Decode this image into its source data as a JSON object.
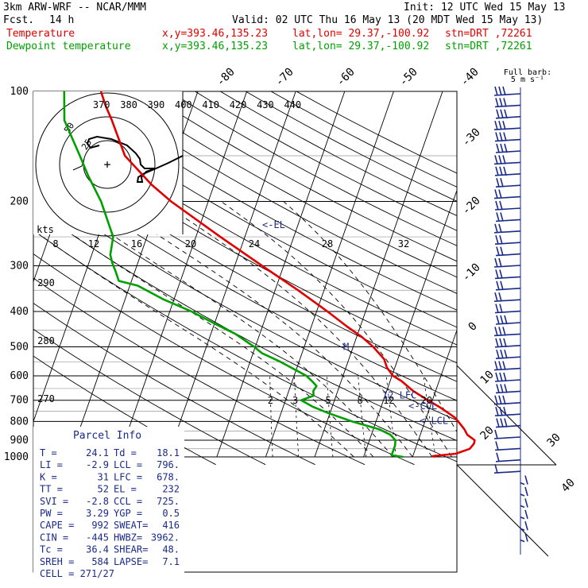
{
  "header": {
    "model": "3km ARW-WRF -- NCAR/MMM",
    "init": "Init: 12 UTC Wed 15 May 13",
    "fcst_label": "Fcst.",
    "fcst_value": "14 h",
    "valid": "Valid: 02 UTC Thu 16 May 13 (20 MDT Wed 15 May 13)",
    "lines": [
      {
        "name": "Temperature",
        "xy": "x,y=393.46,135.23",
        "latlon": "lat,lon= 29.37,-100.92",
        "stn": "stn=DRT ,72261",
        "color": "#e00000"
      },
      {
        "name": "Dewpoint temperature",
        "xy": "x,y=393.46,135.23",
        "latlon": "lat,lon= 29.37,-100.92",
        "stn": "stn=DRT ,72261",
        "color": "#00a000"
      }
    ],
    "barb_key": "Full barb:",
    "barb_key_unit": "5 m s⁻¹"
  },
  "chart_data": {
    "type": "line",
    "diagram": "skew-T log-p",
    "pressure_labels": [
      "100",
      "200",
      "300",
      "400",
      "500",
      "600",
      "700",
      "800",
      "900",
      "1000"
    ],
    "pressure_levels": [
      100,
      200,
      300,
      400,
      500,
      600,
      700,
      800,
      900,
      1000
    ],
    "isotherm_labels": [
      "-80",
      "-70",
      "-60",
      "-50",
      "-40",
      "-30",
      "-20",
      "-10",
      "0",
      "10",
      "20",
      "30",
      "40"
    ],
    "isotherms": [
      -80,
      -70,
      -60,
      -50,
      -40,
      -30,
      -20,
      -10,
      0,
      10,
      20,
      30,
      40
    ],
    "theta_labels": [
      "370",
      "380",
      "390",
      "400",
      "410",
      "420",
      "430",
      "440"
    ],
    "thetas": [
      370,
      380,
      390,
      400,
      410,
      420,
      430,
      440
    ],
    "theta_labels_low": [
      "290",
      "280",
      "270"
    ],
    "thetas_low": [
      290,
      280,
      270
    ],
    "mixing_ratio_labels": [
      "2",
      "3",
      "5",
      "8",
      "12",
      "20"
    ],
    "mixing_ratios": [
      2,
      3,
      5,
      8,
      12,
      20
    ],
    "series": [
      {
        "name": "Temperature",
        "color": "#e00000",
        "points": [
          [
            1000,
            24.6
          ],
          [
            995,
            24.1
          ],
          [
            980,
            28.6
          ],
          [
            950,
            31.1
          ],
          [
            920,
            31.6
          ],
          [
            900,
            31.5
          ],
          [
            870,
            29.6
          ],
          [
            840,
            28.6
          ],
          [
            800,
            26.8
          ],
          [
            780,
            25.8
          ],
          [
            760,
            24.3
          ],
          [
            730,
            21.9
          ],
          [
            700,
            19.1
          ],
          [
            660,
            15.4
          ],
          [
            620,
            12.3
          ],
          [
            600,
            10.2
          ],
          [
            570,
            8.4
          ],
          [
            540,
            7.2
          ],
          [
            500,
            4.1
          ],
          [
            470,
            1.1
          ],
          [
            440,
            -2.7
          ],
          [
            400,
            -7.8
          ],
          [
            350,
            -15.3
          ],
          [
            300,
            -24.4
          ],
          [
            250,
            -35.0
          ],
          [
            200,
            -47.6
          ],
          [
            180,
            -52.8
          ],
          [
            150,
            -60.3
          ],
          [
            120,
            -65.5
          ],
          [
            110,
            -67.7
          ],
          [
            100,
            -69.8
          ]
        ]
      },
      {
        "name": "Dewpoint temperature",
        "color": "#00a000",
        "points": [
          [
            1000,
            18.1
          ],
          [
            990,
            15.6
          ],
          [
            960,
            15.6
          ],
          [
            930,
            15.6
          ],
          [
            900,
            15.3
          ],
          [
            870,
            13.9
          ],
          [
            840,
            11.2
          ],
          [
            800,
            5.1
          ],
          [
            760,
            -0.2
          ],
          [
            730,
            -3.9
          ],
          [
            700,
            -6.8
          ],
          [
            680,
            -4.6
          ],
          [
            660,
            -5.0
          ],
          [
            640,
            -4.7
          ],
          [
            620,
            -6.0
          ],
          [
            600,
            -7.5
          ],
          [
            550,
            -13.7
          ],
          [
            520,
            -18.2
          ],
          [
            500,
            -20.2
          ],
          [
            460,
            -25.1
          ],
          [
            430,
            -30.3
          ],
          [
            400,
            -35.6
          ],
          [
            370,
            -42.3
          ],
          [
            340,
            -48.4
          ],
          [
            330,
            -52.6
          ],
          [
            310,
            -54.0
          ],
          [
            295,
            -55.2
          ],
          [
            280,
            -56.2
          ],
          [
            250,
            -56.9
          ],
          [
            200,
            -61.9
          ],
          [
            170,
            -66.4
          ],
          [
            150,
            -69.5
          ],
          [
            120,
            -75.2
          ],
          [
            100,
            -77.3
          ]
        ]
      }
    ],
    "parcel_markers": [
      {
        "label": "<-EL",
        "pressure": 232
      },
      {
        "label": "12 LFC",
        "pressure": 678
      },
      {
        "label": "<-CCL",
        "pressure": 725
      },
      {
        "label": "<-LCL",
        "pressure": 796
      },
      {
        "label": "M",
        "pressure": 500
      }
    ],
    "hodograph": {
      "ring_labels": [
        "25",
        "50"
      ],
      "speed_labels": [
        "8",
        "12",
        "16",
        "20",
        "24",
        "28",
        "32"
      ],
      "speed_unit": "kts"
    },
    "wind_barbs_count": 40
  },
  "parcel_info": {
    "title": "Parcel Info",
    "rows": [
      [
        "T  =",
        "24.1",
        "Td  =",
        "18.1"
      ],
      [
        "LI =",
        "-2.9",
        "LCL =",
        "796."
      ],
      [
        "K  =",
        "31",
        "LFC =",
        "678."
      ],
      [
        "TT =",
        "52",
        "EL  =",
        "232"
      ],
      [
        "SVI =",
        "-2.8",
        "CCL =",
        "725."
      ],
      [
        "PW =",
        "3.29",
        "YGP =",
        "0.5"
      ],
      [
        "CAPE =",
        "992",
        "SWEAT=",
        "416"
      ],
      [
        "CIN =",
        "-445",
        "HWBZ=",
        "3962."
      ],
      [
        "Tc =",
        "36.4",
        "SHEAR=",
        "48."
      ],
      [
        "SREH =",
        "584",
        "LAPSE=",
        "7.1"
      ]
    ],
    "cell_label": "CELL = 271/27"
  }
}
